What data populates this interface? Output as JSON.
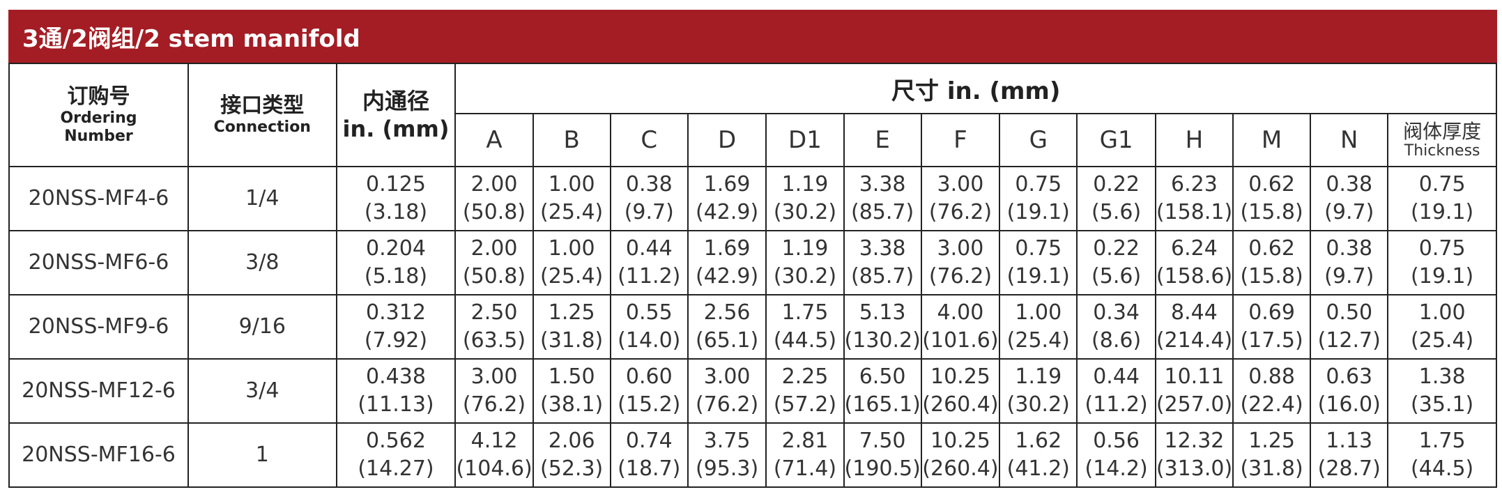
{
  "title": "3通/2阀组/2 stem manifold",
  "headers": {
    "ordering_cn": "订购号",
    "ordering_en_1": "Ordering",
    "ordering_en_2": "Number",
    "connection_cn": "接口类型",
    "connection_en": "Connection",
    "bore_cn": "内通径",
    "bore_unit": "in. (mm)",
    "dimensions": "尺寸 in. (mm)",
    "columns": [
      "A",
      "B",
      "C",
      "D",
      "D1",
      "E",
      "F",
      "G",
      "G1",
      "H",
      "M",
      "N"
    ],
    "thickness_cn": "阀体厚度",
    "thickness_en": "Thickness"
  },
  "rows": [
    {
      "ordering": "20NSS-MF4-6",
      "connection": "1/4",
      "bore": [
        "0.125",
        "(3.18)"
      ],
      "dims": [
        [
          "2.00",
          "(50.8)"
        ],
        [
          "1.00",
          "(25.4)"
        ],
        [
          "0.38",
          "(9.7)"
        ],
        [
          "1.69",
          "(42.9)"
        ],
        [
          "1.19",
          "(30.2)"
        ],
        [
          "3.38",
          "(85.7)"
        ],
        [
          "3.00",
          "(76.2)"
        ],
        [
          "0.75",
          "(19.1)"
        ],
        [
          "0.22",
          "(5.6)"
        ],
        [
          "6.23",
          "(158.1)"
        ],
        [
          "0.62",
          "(15.8)"
        ],
        [
          "0.38",
          "(9.7)"
        ]
      ],
      "thickness": [
        "0.75",
        "(19.1)"
      ]
    },
    {
      "ordering": "20NSS-MF6-6",
      "connection": "3/8",
      "bore": [
        "0.204",
        "(5.18)"
      ],
      "dims": [
        [
          "2.00",
          "(50.8)"
        ],
        [
          "1.00",
          "(25.4)"
        ],
        [
          "0.44",
          "(11.2)"
        ],
        [
          "1.69",
          "(42.9)"
        ],
        [
          "1.19",
          "(30.2)"
        ],
        [
          "3.38",
          "(85.7)"
        ],
        [
          "3.00",
          "(76.2)"
        ],
        [
          "0.75",
          "(19.1)"
        ],
        [
          "0.22",
          "(5.6)"
        ],
        [
          "6.24",
          "(158.6)"
        ],
        [
          "0.62",
          "(15.8)"
        ],
        [
          "0.38",
          "(9.7)"
        ]
      ],
      "thickness": [
        "0.75",
        "(19.1)"
      ]
    },
    {
      "ordering": "20NSS-MF9-6",
      "connection": "9/16",
      "bore": [
        "0.312",
        "(7.92)"
      ],
      "dims": [
        [
          "2.50",
          "(63.5)"
        ],
        [
          "1.25",
          "(31.8)"
        ],
        [
          "0.55",
          "(14.0)"
        ],
        [
          "2.56",
          "(65.1)"
        ],
        [
          "1.75",
          "(44.5)"
        ],
        [
          "5.13",
          "(130.2)"
        ],
        [
          "4.00",
          "(101.6)"
        ],
        [
          "1.00",
          "(25.4)"
        ],
        [
          "0.34",
          "(8.6)"
        ],
        [
          "8.44",
          "(214.4)"
        ],
        [
          "0.69",
          "(17.5)"
        ],
        [
          "0.50",
          "(12.7)"
        ]
      ],
      "thickness": [
        "1.00",
        "(25.4)"
      ]
    },
    {
      "ordering": "20NSS-MF12-6",
      "connection": "3/4",
      "bore": [
        "0.438",
        "(11.13)"
      ],
      "dims": [
        [
          "3.00",
          "(76.2)"
        ],
        [
          "1.50",
          "(38.1)"
        ],
        [
          "0.60",
          "(15.2)"
        ],
        [
          "3.00",
          "(76.2)"
        ],
        [
          "2.25",
          "(57.2)"
        ],
        [
          "6.50",
          "(165.1)"
        ],
        [
          "10.25",
          "(260.4)"
        ],
        [
          "1.19",
          "(30.2)"
        ],
        [
          "0.44",
          "(11.2)"
        ],
        [
          "10.11",
          "(257.0)"
        ],
        [
          "0.88",
          "(22.4)"
        ],
        [
          "0.63",
          "(16.0)"
        ]
      ],
      "thickness": [
        "1.38",
        "(35.1)"
      ]
    },
    {
      "ordering": "20NSS-MF16-6",
      "connection": "1",
      "bore": [
        "0.562",
        "(14.27)"
      ],
      "dims": [
        [
          "4.12",
          "(104.6)"
        ],
        [
          "2.06",
          "(52.3)"
        ],
        [
          "0.74",
          "(18.7)"
        ],
        [
          "3.75",
          "(95.3)"
        ],
        [
          "2.81",
          "(71.4)"
        ],
        [
          "7.50",
          "(190.5)"
        ],
        [
          "10.25",
          "(260.4)"
        ],
        [
          "1.62",
          "(41.2)"
        ],
        [
          "0.56",
          "(14.2)"
        ],
        [
          "12.32",
          "(313.0)"
        ],
        [
          "1.25",
          "(31.8)"
        ],
        [
          "1.13",
          "(28.7)"
        ]
      ],
      "thickness": [
        "1.75",
        "(44.5)"
      ]
    }
  ],
  "colors": {
    "title_bar": "#a41d24",
    "border": "#222222"
  }
}
